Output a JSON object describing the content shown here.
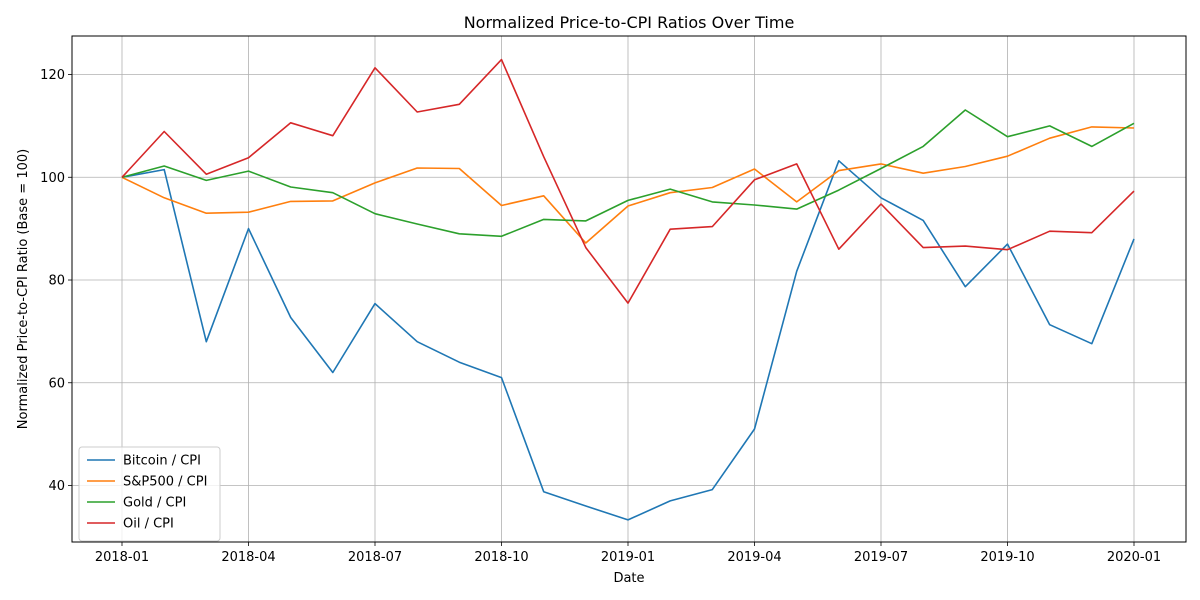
{
  "chart_data": {
    "type": "line",
    "title": "Normalized Price-to-CPI Ratios Over Time",
    "xlabel": "Date",
    "ylabel": "Normalized Price-to-CPI Ratio (Base = 100)",
    "x": [
      "2018-01",
      "2018-02",
      "2018-03",
      "2018-04",
      "2018-05",
      "2018-06",
      "2018-07",
      "2018-08",
      "2018-09",
      "2018-10",
      "2018-11",
      "2018-12",
      "2019-01",
      "2019-02",
      "2019-03",
      "2019-04",
      "2019-05",
      "2019-06",
      "2019-07",
      "2019-08",
      "2019-09",
      "2019-10",
      "2019-11",
      "2019-12",
      "2020-01"
    ],
    "x_ticks": [
      "2018-01",
      "2018-04",
      "2018-07",
      "2018-10",
      "2019-01",
      "2019-04",
      "2019-07",
      "2019-10",
      "2020-01"
    ],
    "y_ticks": [
      40,
      60,
      80,
      100,
      120
    ],
    "ylim": [
      29,
      127.5
    ],
    "grid": true,
    "legend_position": "lower-left",
    "series": [
      {
        "name": "Bitcoin / CPI",
        "color": "#1f77b4",
        "values": [
          100,
          101.5,
          68,
          90,
          72.7,
          62,
          75.4,
          68,
          64,
          61,
          38.8,
          36,
          33.3,
          37,
          39.2,
          51,
          81.7,
          103.2,
          96,
          91.6,
          78.7,
          87,
          71.3,
          67.6,
          88
        ]
      },
      {
        "name": "S&P500 / CPI",
        "color": "#ff7f0e",
        "values": [
          100,
          96,
          93,
          93.2,
          95.3,
          95.4,
          98.9,
          101.8,
          101.7,
          94.5,
          96.4,
          87.2,
          94.4,
          97,
          98,
          101.6,
          95.2,
          101.3,
          102.6,
          100.8,
          102.1,
          104.1,
          107.6,
          109.8,
          109.6
        ]
      },
      {
        "name": "Gold / CPI",
        "color": "#2ca02c",
        "values": [
          100,
          102.2,
          99.4,
          101.2,
          98.1,
          97,
          92.9,
          90.9,
          89,
          88.5,
          91.8,
          91.5,
          95.5,
          97.7,
          95.2,
          94.6,
          93.8,
          97.5,
          101.7,
          106,
          113.1,
          107.9,
          110,
          106,
          110.5
        ]
      },
      {
        "name": "Oil / CPI",
        "color": "#d62728",
        "values": [
          100,
          108.9,
          100.6,
          103.8,
          110.6,
          108.1,
          121.3,
          112.7,
          114.2,
          122.9,
          104,
          86.3,
          75.5,
          89.9,
          90.4,
          99.5,
          102.6,
          86,
          94.8,
          86.3,
          86.6,
          85.9,
          89.5,
          89.2,
          97.3
        ]
      }
    ]
  }
}
